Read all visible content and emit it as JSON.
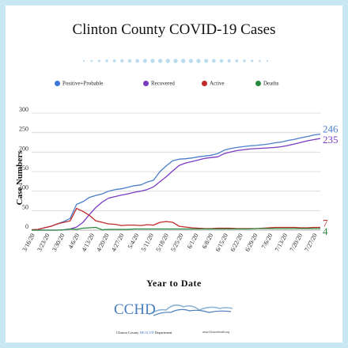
{
  "title": "Clinton County COVID-19 Cases",
  "colors": {
    "background": "#c9e6f4",
    "positive": "#4a7ec9",
    "recovered": "#7a3bbf",
    "active": "#c12a2a",
    "deaths": "#2a8a3e",
    "dots": "#b9dcef"
  },
  "legend": [
    {
      "label": "Positive+Probable",
      "color": "#3b78d8"
    },
    {
      "label": "Recovered",
      "color": "#7a3bbf"
    },
    {
      "label": "Active",
      "color": "#c12a2a"
    },
    {
      "label": "Deaths",
      "color": "#2a8a3e"
    }
  ],
  "logo": {
    "text": "CCHD",
    "subtitle_pre": "Clinton County ",
    "subtitle_highlight": "HEALTH",
    "subtitle_post": " Department",
    "site": "www.ClintonHealth.org"
  },
  "chart_data": {
    "type": "line",
    "title": "Clinton County COVID-19 Cases",
    "xlabel": "Year to Date",
    "ylabel": "Case Numbers",
    "ylim": [
      0,
      300
    ],
    "yticks": [
      0,
      50,
      100,
      150,
      200,
      250,
      300
    ],
    "grid": "horizontal",
    "legend_position": "top",
    "x": [
      "3/16/20",
      "3/19/20",
      "3/22/20",
      "3/25/20",
      "3/28/20",
      "3/31/20",
      "4/3/20",
      "4/6/20",
      "4/9/20",
      "4/12/20",
      "4/15/20",
      "4/18/20",
      "4/21/20",
      "4/24/20",
      "4/27/20",
      "4/30/20",
      "5/3/20",
      "5/6/20",
      "5/9/20",
      "5/12/20",
      "5/15/20",
      "5/18/20",
      "5/21/20",
      "5/24/20",
      "5/27/20",
      "5/30/20",
      "6/2/20",
      "6/5/20",
      "6/8/20",
      "6/11/20",
      "6/14/20",
      "6/17/20",
      "6/20/20",
      "6/23/20",
      "6/26/20",
      "6/29/20",
      "7/2/20",
      "7/5/20",
      "7/8/20",
      "7/11/20",
      "7/14/20",
      "7/17/20",
      "7/20/20",
      "7/23/20",
      "7/26/20",
      "7/29/20"
    ],
    "xtick_labels": [
      "3/16/20",
      "3/23/20",
      "3/30/20",
      "4/6/20",
      "4/13/20",
      "4/20/20",
      "4/27/20",
      "5/4/20",
      "5/11/20",
      "5/18/20",
      "5/25/20",
      "6/1/20",
      "6/8/20",
      "6/15/20",
      "6/22/20",
      "6/29/20",
      "7/6/20",
      "7/13/20",
      "7/20/20",
      "7/27/20"
    ],
    "series": [
      {
        "name": "Positive+Probable",
        "end_label": "246",
        "values": [
          1,
          2,
          6,
          10,
          16,
          22,
          30,
          66,
          73,
          84,
          89,
          93,
          100,
          104,
          106,
          110,
          114,
          116,
          123,
          128,
          150,
          165,
          178,
          182,
          183,
          185,
          188,
          190,
          192,
          196,
          205,
          209,
          212,
          214,
          216,
          217,
          219,
          221,
          224,
          226,
          230,
          233,
          237,
          240,
          244,
          246
        ]
      },
      {
        "name": "Recovered",
        "end_label": "235",
        "values": [
          0,
          0,
          0,
          0,
          0,
          1,
          3,
          8,
          20,
          40,
          58,
          72,
          82,
          86,
          90,
          93,
          97,
          100,
          104,
          111,
          124,
          137,
          152,
          166,
          172,
          176,
          180,
          184,
          186,
          188,
          196,
          200,
          204,
          206,
          208,
          209,
          210,
          211,
          212,
          214,
          217,
          221,
          225,
          229,
          232,
          235
        ]
      },
      {
        "name": "Active",
        "end_label": "7",
        "values": [
          1,
          2,
          6,
          10,
          16,
          20,
          24,
          56,
          48,
          38,
          24,
          20,
          16,
          15,
          12,
          13,
          13,
          12,
          14,
          13,
          20,
          22,
          20,
          10,
          8,
          6,
          5,
          4,
          4,
          5,
          5,
          5,
          4,
          4,
          4,
          4,
          5,
          6,
          7,
          7,
          7,
          7,
          6,
          6,
          7,
          7
        ]
      },
      {
        "name": "Deaths",
        "end_label": "4",
        "values": [
          0,
          0,
          0,
          0,
          0,
          1,
          3,
          2,
          5,
          6,
          7,
          1,
          2,
          2,
          2,
          2,
          3,
          3,
          3,
          3,
          3,
          3,
          3,
          3,
          3,
          3,
          3,
          3,
          3,
          3,
          3,
          3,
          3,
          3,
          3,
          4,
          4,
          4,
          4,
          4,
          4,
          4,
          4,
          4,
          4,
          4
        ]
      }
    ]
  }
}
